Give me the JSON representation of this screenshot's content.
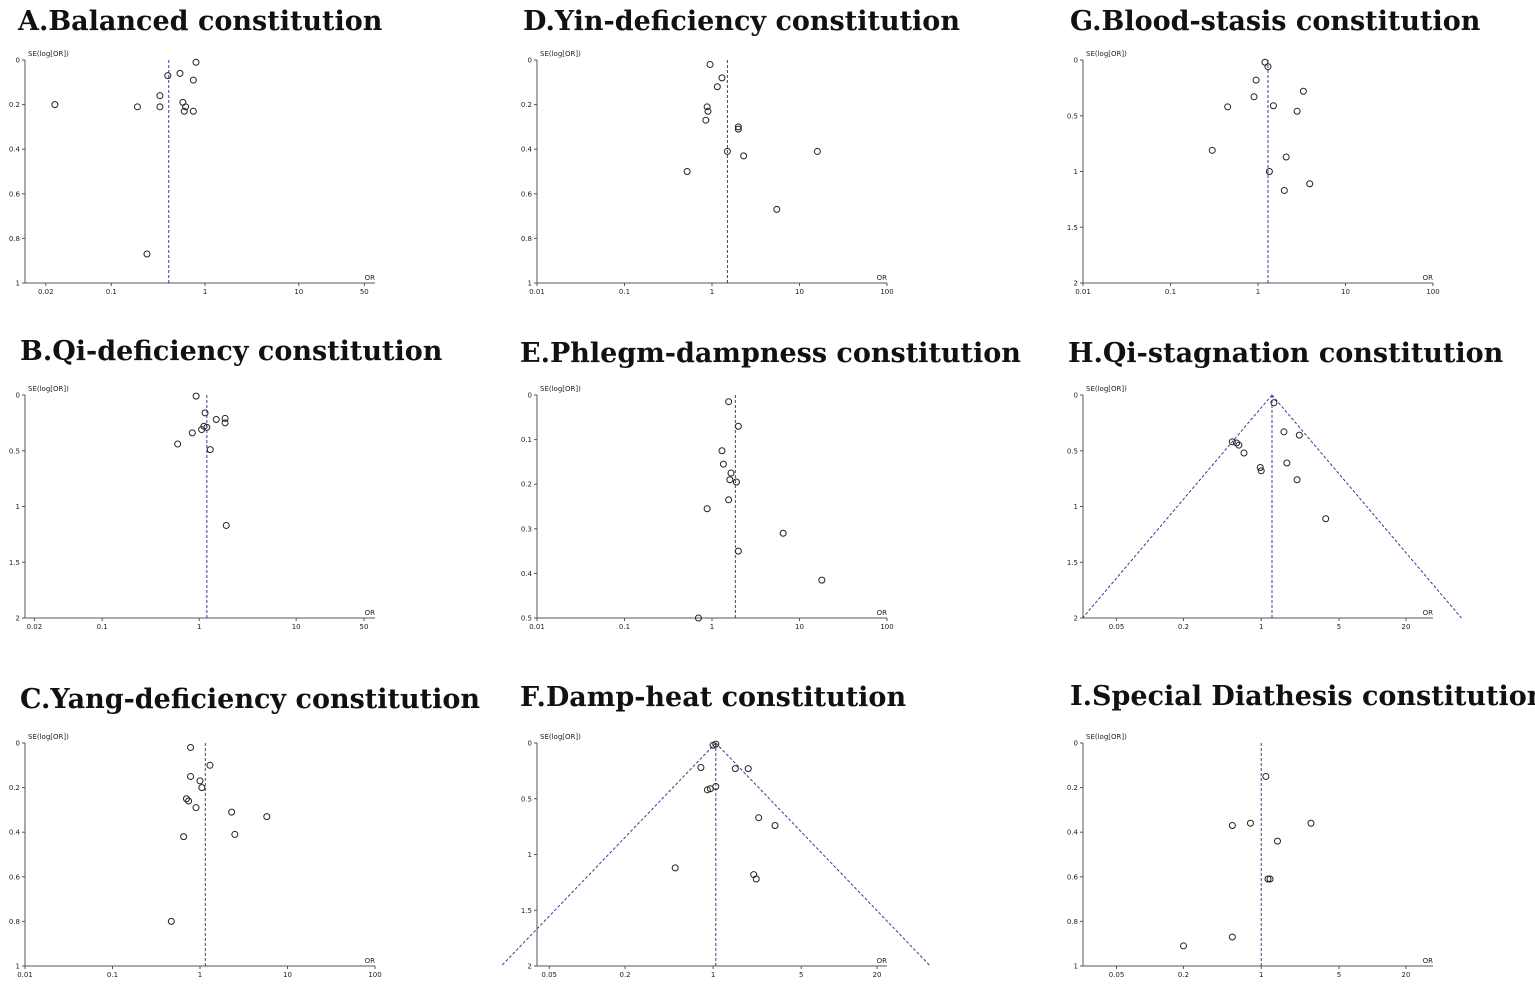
{
  "figure": {
    "style": "funnel plots",
    "point_color": "#222222",
    "reference_line_color": "#3a3a9a",
    "axis_color": "#555555"
  },
  "chart_data": [
    {
      "type": "scatter",
      "title": "A.Balanced constitution",
      "xlabel": "OR",
      "ylabel": "SE(log[OR])",
      "x_scale": "log",
      "xlim": [
        0.012,
        65
      ],
      "ylim": [
        0,
        1
      ],
      "x_ticks": [
        0.02,
        0.1,
        1,
        10,
        50
      ],
      "x_tick_labels": [
        "0.02",
        "0.1",
        "1",
        "10",
        "50"
      ],
      "y_ticks": [
        0,
        0.2,
        0.4,
        0.6,
        0.8,
        1
      ],
      "y_tick_labels": [
        "0",
        "0.2",
        "0.4",
        "0.6",
        "0.8",
        "1"
      ],
      "pooled_or": 0.41,
      "funnel": false,
      "points": [
        [
          0.8,
          0.01
        ],
        [
          0.4,
          0.07
        ],
        [
          0.54,
          0.06
        ],
        [
          0.33,
          0.16
        ],
        [
          0.75,
          0.09
        ],
        [
          0.58,
          0.19
        ],
        [
          0.62,
          0.21
        ],
        [
          0.75,
          0.23
        ],
        [
          0.6,
          0.23
        ],
        [
          0.33,
          0.21
        ],
        [
          0.19,
          0.21
        ],
        [
          0.025,
          0.2
        ],
        [
          0.24,
          0.87
        ]
      ]
    },
    {
      "type": "scatter",
      "title": "B.Qi-deficiency constitution",
      "xlabel": "OR",
      "ylabel": "SE(log[OR])",
      "x_scale": "log",
      "xlim": [
        0.016,
        65
      ],
      "ylim": [
        0,
        2
      ],
      "x_ticks": [
        0.02,
        0.1,
        1,
        10,
        50
      ],
      "x_tick_labels": [
        "0.02",
        "0.1",
        "1",
        "10",
        "50"
      ],
      "y_ticks": [
        0,
        0.5,
        1,
        1.5,
        2
      ],
      "y_tick_labels": [
        "0",
        "0.5",
        "1",
        "1.5",
        "2"
      ],
      "pooled_or": 1.2,
      "funnel": false,
      "points": [
        [
          0.93,
          0.01
        ],
        [
          1.15,
          0.16
        ],
        [
          1.85,
          0.21
        ],
        [
          1.85,
          0.25
        ],
        [
          1.5,
          0.22
        ],
        [
          1.12,
          0.28
        ],
        [
          1.2,
          0.29
        ],
        [
          1.06,
          0.31
        ],
        [
          0.85,
          0.34
        ],
        [
          0.6,
          0.44
        ],
        [
          1.3,
          0.49
        ],
        [
          1.9,
          1.17
        ]
      ]
    },
    {
      "type": "scatter",
      "title": "C.Yang-deficiency constitution",
      "xlabel": "OR",
      "ylabel": "SE(log[OR])",
      "x_scale": "log",
      "xlim": [
        0.01,
        100
      ],
      "ylim": [
        0,
        1
      ],
      "x_ticks": [
        0.01,
        0.1,
        1,
        10,
        100
      ],
      "x_tick_labels": [
        "0.01",
        "0.1",
        "1",
        "10",
        "100"
      ],
      "y_ticks": [
        0,
        0.2,
        0.4,
        0.6,
        0.8,
        1
      ],
      "y_tick_labels": [
        "0",
        "0.2",
        "0.4",
        "0.6",
        "0.8",
        "1"
      ],
      "pooled_or": 1.15,
      "funnel": false,
      "points": [
        [
          0.78,
          0.02
        ],
        [
          1.3,
          0.1
        ],
        [
          0.78,
          0.15
        ],
        [
          1.0,
          0.17
        ],
        [
          1.05,
          0.2
        ],
        [
          0.7,
          0.25
        ],
        [
          0.74,
          0.26
        ],
        [
          0.9,
          0.29
        ],
        [
          2.3,
          0.31
        ],
        [
          5.8,
          0.33
        ],
        [
          2.5,
          0.41
        ],
        [
          0.65,
          0.42
        ],
        [
          0.47,
          0.8
        ]
      ]
    },
    {
      "type": "scatter",
      "title": "D.Yin-deficiency constitution",
      "xlabel": "OR",
      "ylabel": "SE(log[OR])",
      "x_scale": "log",
      "xlim": [
        0.01,
        100
      ],
      "ylim": [
        0,
        1
      ],
      "x_ticks": [
        0.01,
        0.1,
        1,
        10,
        100
      ],
      "x_tick_labels": [
        "0.01",
        "0.1",
        "1",
        "10",
        "100"
      ],
      "y_ticks": [
        0,
        0.2,
        0.4,
        0.6,
        0.8,
        1
      ],
      "y_tick_labels": [
        "0",
        "0.2",
        "0.4",
        "0.6",
        "0.8",
        "1"
      ],
      "pooled_or": 1.5,
      "funnel": false,
      "points": [
        [
          0.95,
          0.02
        ],
        [
          1.3,
          0.08
        ],
        [
          1.15,
          0.12
        ],
        [
          0.88,
          0.21
        ],
        [
          0.9,
          0.23
        ],
        [
          0.85,
          0.27
        ],
        [
          2.0,
          0.3
        ],
        [
          2.0,
          0.31
        ],
        [
          1.5,
          0.41
        ],
        [
          2.3,
          0.43
        ],
        [
          16,
          0.41
        ],
        [
          0.52,
          0.5
        ],
        [
          5.5,
          0.67
        ]
      ]
    },
    {
      "type": "scatter",
      "title": "E.Phlegm-dampness constitution",
      "xlabel": "OR",
      "ylabel": "SE(log[OR])",
      "x_scale": "log",
      "xlim": [
        0.01,
        100
      ],
      "ylim": [
        0,
        0.5
      ],
      "x_ticks": [
        0.01,
        0.1,
        1,
        10,
        100
      ],
      "x_tick_labels": [
        "0.01",
        "0.1",
        "1",
        "10",
        "100"
      ],
      "y_ticks": [
        0,
        0.1,
        0.2,
        0.3,
        0.4,
        0.5
      ],
      "y_tick_labels": [
        "0",
        "0.1",
        "0.2",
        "0.3",
        "0.4",
        "0.5"
      ],
      "pooled_or": 1.85,
      "funnel": false,
      "points": [
        [
          1.55,
          0.015
        ],
        [
          2.0,
          0.07
        ],
        [
          1.3,
          0.125
        ],
        [
          1.35,
          0.155
        ],
        [
          1.65,
          0.175
        ],
        [
          1.6,
          0.19
        ],
        [
          1.9,
          0.195
        ],
        [
          1.55,
          0.235
        ],
        [
          0.88,
          0.255
        ],
        [
          6.5,
          0.31
        ],
        [
          2.0,
          0.35
        ],
        [
          18,
          0.415
        ],
        [
          0.7,
          0.5
        ]
      ]
    },
    {
      "type": "scatter",
      "title": "F.Damp-heat constitution",
      "xlabel": "OR",
      "ylabel": "SE(log[OR])",
      "x_scale": "log",
      "xlim": [
        0.04,
        24
      ],
      "ylim": [
        0,
        2
      ],
      "x_ticks": [
        0.05,
        0.2,
        1,
        5,
        20
      ],
      "x_tick_labels": [
        "0.05",
        "0.2",
        "1",
        "5",
        "20"
      ],
      "y_ticks": [
        0,
        0.5,
        1,
        1.5,
        2
      ],
      "y_tick_labels": [
        "0",
        "0.5",
        "1",
        "1.5",
        "2"
      ],
      "pooled_or": 1.05,
      "funnel": true,
      "points": [
        [
          1.0,
          0.02
        ],
        [
          1.05,
          0.01
        ],
        [
          0.8,
          0.22
        ],
        [
          1.5,
          0.23
        ],
        [
          1.9,
          0.23
        ],
        [
          0.9,
          0.42
        ],
        [
          0.95,
          0.41
        ],
        [
          1.05,
          0.39
        ],
        [
          2.3,
          0.67
        ],
        [
          3.1,
          0.74
        ],
        [
          0.5,
          1.12
        ],
        [
          2.1,
          1.18
        ],
        [
          2.2,
          1.22
        ]
      ]
    },
    {
      "type": "scatter",
      "title": "G.Blood-stasis constitution",
      "xlabel": "OR",
      "ylabel": "SE(log[OR])",
      "x_scale": "log",
      "xlim": [
        0.01,
        100
      ],
      "ylim": [
        0,
        2
      ],
      "x_ticks": [
        0.01,
        0.1,
        1,
        10,
        100
      ],
      "x_tick_labels": [
        "0.01",
        "0.1",
        "1",
        "10",
        "100"
      ],
      "y_ticks": [
        0,
        0.5,
        1,
        1.5,
        2
      ],
      "y_tick_labels": [
        "0",
        "0.5",
        "1",
        "1.5",
        "2"
      ],
      "pooled_or": 1.3,
      "funnel": false,
      "points": [
        [
          1.2,
          0.02
        ],
        [
          1.3,
          0.06
        ],
        [
          0.95,
          0.18
        ],
        [
          3.3,
          0.28
        ],
        [
          0.9,
          0.33
        ],
        [
          0.45,
          0.42
        ],
        [
          1.5,
          0.41
        ],
        [
          2.8,
          0.46
        ],
        [
          0.3,
          0.81
        ],
        [
          2.1,
          0.87
        ],
        [
          1.35,
          1.0
        ],
        [
          3.9,
          1.11
        ],
        [
          2.0,
          1.17
        ]
      ]
    },
    {
      "type": "scatter",
      "title": "H.Qi-stagnation constitution",
      "xlabel": "OR",
      "ylabel": "SE(log[OR])",
      "x_scale": "log",
      "xlim": [
        0.025,
        35
      ],
      "ylim": [
        0,
        2
      ],
      "x_ticks": [
        0.05,
        0.2,
        1,
        5,
        20
      ],
      "x_tick_labels": [
        "0.05",
        "0.2",
        "1",
        "5",
        "20"
      ],
      "y_ticks": [
        0,
        0.5,
        1,
        1.5,
        2
      ],
      "y_tick_labels": [
        "0",
        "0.5",
        "1",
        "1.5",
        "2"
      ],
      "pooled_or": 1.25,
      "funnel": true,
      "points": [
        [
          1.3,
          0.07
        ],
        [
          1.6,
          0.33
        ],
        [
          2.2,
          0.36
        ],
        [
          0.55,
          0.42
        ],
        [
          0.6,
          0.43
        ],
        [
          0.63,
          0.45
        ],
        [
          0.7,
          0.52
        ],
        [
          0.98,
          0.65
        ],
        [
          1.0,
          0.68
        ],
        [
          1.7,
          0.61
        ],
        [
          2.1,
          0.76
        ],
        [
          3.8,
          1.11
        ]
      ]
    },
    {
      "type": "scatter",
      "title": "I.Special Diathesis constitution",
      "xlabel": "OR",
      "ylabel": "SE(log[OR])",
      "x_scale": "log",
      "xlim": [
        0.025,
        35
      ],
      "ylim": [
        0,
        1
      ],
      "x_ticks": [
        0.05,
        0.2,
        1,
        5,
        20
      ],
      "x_tick_labels": [
        "0.05",
        "0.2",
        "1",
        "5",
        "20"
      ],
      "y_ticks": [
        0,
        0.2,
        0.4,
        0.6,
        0.8,
        1
      ],
      "y_tick_labels": [
        "0",
        "0.2",
        "0.4",
        "0.6",
        "0.8",
        "1"
      ],
      "pooled_or": 1.0,
      "funnel": false,
      "points": [
        [
          1.1,
          0.15
        ],
        [
          0.55,
          0.37
        ],
        [
          0.8,
          0.36
        ],
        [
          2.8,
          0.36
        ],
        [
          1.4,
          0.44
        ],
        [
          1.15,
          0.61
        ],
        [
          1.2,
          0.61
        ],
        [
          0.2,
          0.91
        ],
        [
          0.55,
          0.87
        ]
      ]
    }
  ]
}
